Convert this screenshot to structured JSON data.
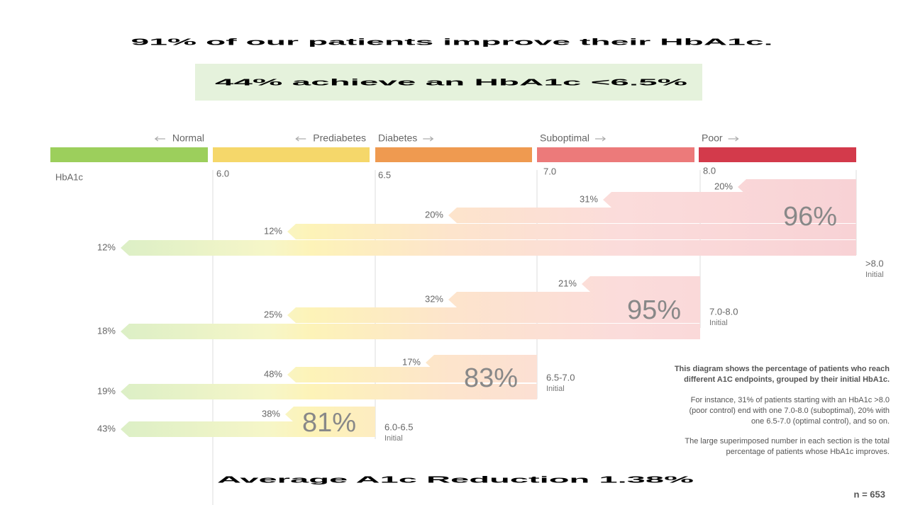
{
  "header": {
    "title": "91% of our patients improve their HbA1c.",
    "subtitle": "44% achieve an HbA1c <6.5%"
  },
  "scale": {
    "label": "HbA1c",
    "zones": [
      {
        "name": "Normal",
        "color": "#9ccf5c"
      },
      {
        "name": "Prediabetes",
        "color": "#f5d76a"
      },
      {
        "name": "Diabetes",
        "color": "#ef9a50"
      },
      {
        "name": "Suboptimal",
        "color": "#ec7a7a"
      },
      {
        "name": "Poor",
        "color": "#d33a4b"
      }
    ],
    "thresholds": [
      "6.0",
      "6.5",
      "7.0",
      "8.0"
    ]
  },
  "groups": [
    {
      "initial": ">8.0",
      "initial_note": "Initial",
      "total": "96%",
      "arrows": [
        "20%",
        "31%",
        "20%",
        "12%",
        "12%"
      ]
    },
    {
      "initial": "7.0-8.0",
      "initial_note": "Initial",
      "total": "95%",
      "arrows": [
        "21%",
        "32%",
        "25%",
        "18%"
      ]
    },
    {
      "initial": "6.5-7.0",
      "initial_note": "Initial",
      "total": "83%",
      "arrows": [
        "17%",
        "48%",
        "19%"
      ]
    },
    {
      "initial": "6.0-6.5",
      "initial_note": "Initial",
      "total": "81%",
      "arrows": [
        "38%",
        "43%"
      ]
    }
  ],
  "note": {
    "paragraphs": [
      [
        "This diagram shows the percentage of patients who reach",
        "different A1C endpoints, grouped by their initial HbA1c."
      ],
      [
        "For instance, 31% of patients starting with an HbA1c >8.0",
        "(poor control) end with one 7.0-8.0 (suboptimal), 20% with",
        "one 6.5-7.0 (optimal control), and so on."
      ],
      [
        "The large superimposed number in each section is the total",
        "percentage of patients whose HbA1c improves."
      ]
    ]
  },
  "sample": "n = 653",
  "footer": "Average A1c Reduction  1.38%"
}
